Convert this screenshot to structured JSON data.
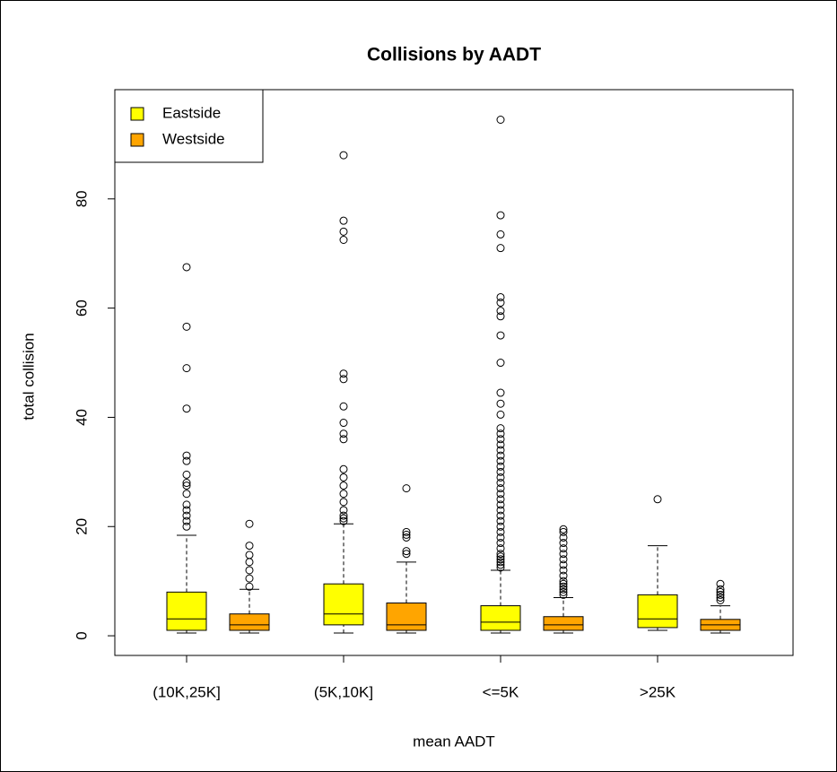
{
  "chart_data": {
    "type": "boxplot",
    "title": "Collisions by AADT",
    "x_label": "mean AADT",
    "y_label": "total collision",
    "categories": [
      "(10K,25K]",
      "(5K,10K]",
      "<=5K",
      ">25K"
    ],
    "ylim": [
      -3.6,
      100
    ],
    "yticks": [
      0,
      20,
      40,
      60,
      80
    ],
    "grid": false,
    "legend": "top-left",
    "series": [
      {
        "name": "Eastside",
        "color": "#ffff00",
        "values": [
          {
            "min": 0.5,
            "q1": 1,
            "median": 3.1,
            "q3": 8,
            "max": 18.4,
            "outliers": [
              20,
              21,
              22,
              23,
              24,
              26,
              27.5,
              28,
              29.5,
              32,
              33,
              41.6,
              49,
              56.6,
              67.5
            ]
          },
          {
            "min": 0.5,
            "q1": 2,
            "median": 4,
            "q3": 9.5,
            "max": 20.5,
            "outliers": [
              21,
              21.5,
              22,
              23,
              24.5,
              26,
              27.5,
              29,
              30.5,
              36,
              37,
              39,
              42,
              47,
              48,
              72.5,
              74,
              76,
              88
            ]
          },
          {
            "min": 0.5,
            "q1": 1,
            "median": 2.5,
            "q3": 5.5,
            "max": 12,
            "outliers": [
              12.5,
              13,
              13.5,
              14,
              14.5,
              15,
              16,
              17,
              18,
              19,
              20,
              21,
              22,
              23,
              24,
              25,
              26,
              27,
              28,
              29,
              30,
              31,
              32,
              33,
              34,
              35,
              36,
              37,
              38,
              40.5,
              42.5,
              44.5,
              50,
              55,
              58.5,
              59.5,
              61,
              62,
              71,
              73.5,
              77,
              94.5
            ]
          },
          {
            "min": 1,
            "q1": 1.5,
            "median": 3.1,
            "q3": 7.5,
            "max": 16.5,
            "outliers": [
              25
            ]
          }
        ]
      },
      {
        "name": "Westside",
        "color": "#ffa500",
        "values": [
          {
            "min": 0.5,
            "q1": 1,
            "median": 2,
            "q3": 4,
            "max": 8.5,
            "outliers": [
              9,
              10.5,
              12,
              13.5,
              14.8,
              16.5,
              20.5
            ]
          },
          {
            "min": 0.5,
            "q1": 1,
            "median": 2,
            "q3": 6,
            "max": 13.5,
            "outliers": [
              15,
              15.5,
              18,
              18.5,
              19,
              27
            ]
          },
          {
            "min": 0.5,
            "q1": 1,
            "median": 2,
            "q3": 3.5,
            "max": 7,
            "outliers": [
              7.5,
              8,
              8.5,
              9,
              9.5,
              10,
              11,
              12,
              13,
              14,
              15,
              16,
              17,
              18,
              19,
              19.5
            ]
          },
          {
            "min": 0.5,
            "q1": 1,
            "median": 2,
            "q3": 3,
            "max": 5.5,
            "outliers": [
              6.5,
              7,
              7.5,
              8,
              8.5,
              9.5
            ]
          }
        ]
      }
    ]
  }
}
